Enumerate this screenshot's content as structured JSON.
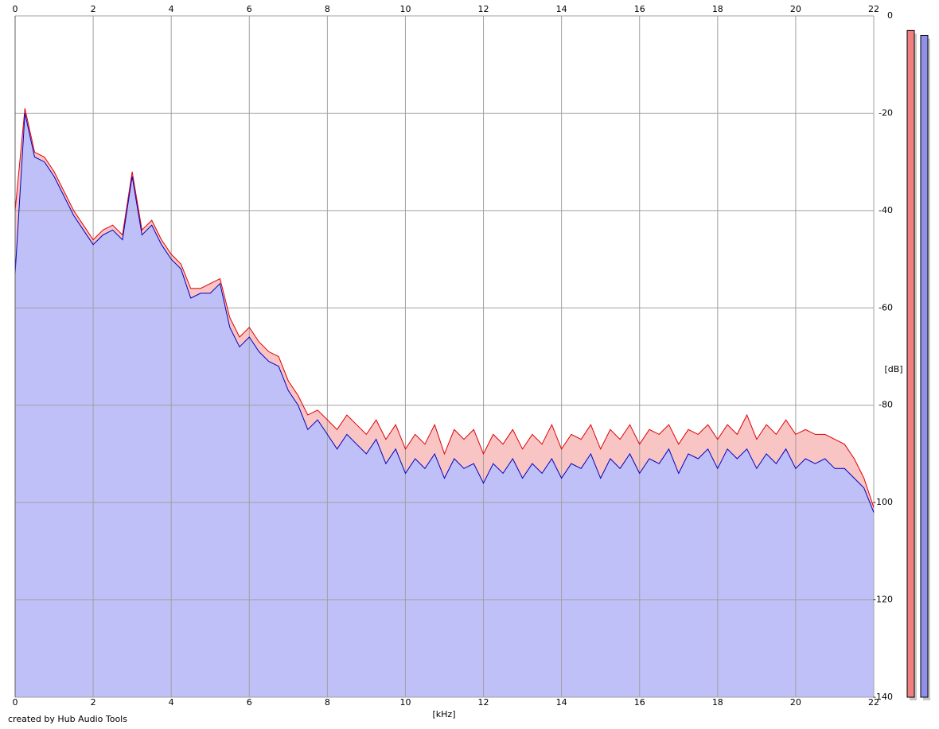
{
  "chart_data": {
    "type": "area",
    "xlabel": "[kHz]",
    "ylabel": "[dB]",
    "credit": "created by Hub Audio Tools",
    "xlim": [
      0,
      22
    ],
    "ylim": [
      -140,
      0
    ],
    "xticks": [
      0,
      2,
      4,
      6,
      8,
      10,
      12,
      14,
      16,
      18,
      20,
      22
    ],
    "yticks": [
      0,
      -20,
      -40,
      -60,
      -80,
      -100,
      -120,
      -140
    ],
    "grid": true,
    "x": [
      0,
      0.25,
      0.5,
      0.75,
      1,
      1.25,
      1.5,
      1.75,
      2,
      2.25,
      2.5,
      2.75,
      3,
      3.25,
      3.5,
      3.75,
      4,
      4.25,
      4.5,
      4.75,
      5,
      5.25,
      5.5,
      5.75,
      6,
      6.25,
      6.5,
      6.75,
      7,
      7.25,
      7.5,
      7.75,
      8,
      8.25,
      8.5,
      8.75,
      9,
      9.25,
      9.5,
      9.75,
      10,
      10.25,
      10.5,
      10.75,
      11,
      11.25,
      11.5,
      11.75,
      12,
      12.25,
      12.5,
      12.75,
      13,
      13.25,
      13.5,
      13.75,
      14,
      14.25,
      14.5,
      14.75,
      15,
      15.25,
      15.5,
      15.75,
      16,
      16.25,
      16.5,
      16.75,
      17,
      17.25,
      17.5,
      17.75,
      18,
      18.25,
      18.5,
      18.75,
      19,
      19.25,
      19.5,
      19.75,
      20,
      20.25,
      20.5,
      20.75,
      21,
      21.25,
      21.5,
      21.75,
      22
    ],
    "series": [
      {
        "color": "#e00000",
        "fill": "#f8c4c4",
        "values": [
          -40,
          -19,
          -28,
          -29,
          -32,
          -36,
          -40,
          -43,
          -46,
          -44,
          -43,
          -45,
          -32,
          -44,
          -42,
          -46,
          -49,
          -51,
          -56,
          -56,
          -55,
          -54,
          -62,
          -66,
          -64,
          -67,
          -69,
          -70,
          -75,
          -78,
          -82,
          -81,
          -83,
          -85,
          -82,
          -84,
          -86,
          -83,
          -87,
          -84,
          -89,
          -86,
          -88,
          -84,
          -90,
          -85,
          -87,
          -85,
          -90,
          -86,
          -88,
          -85,
          -89,
          -86,
          -88,
          -84,
          -89,
          -86,
          -87,
          -84,
          -89,
          -85,
          -87,
          -84,
          -88,
          -85,
          -86,
          -84,
          -88,
          -85,
          -86,
          -84,
          -87,
          -84,
          -86,
          -82,
          -87,
          -84,
          -86,
          -83,
          -86,
          -85,
          -86,
          -86,
          -87,
          -88,
          -91,
          -95,
          -101
        ]
      },
      {
        "color": "#0000c0",
        "fill": "#c0c0f8",
        "values": [
          -53,
          -20,
          -29,
          -30,
          -33,
          -37,
          -41,
          -44,
          -47,
          -45,
          -44,
          -46,
          -33,
          -45,
          -43,
          -47,
          -50,
          -52,
          -58,
          -57,
          -57,
          -55,
          -64,
          -68,
          -66,
          -69,
          -71,
          -72,
          -77,
          -80,
          -85,
          -83,
          -86,
          -89,
          -86,
          -88,
          -90,
          -87,
          -92,
          -89,
          -94,
          -91,
          -93,
          -90,
          -95,
          -91,
          -93,
          -92,
          -96,
          -92,
          -94,
          -91,
          -95,
          -92,
          -94,
          -91,
          -95,
          -92,
          -93,
          -90,
          -95,
          -91,
          -93,
          -90,
          -94,
          -91,
          -92,
          -89,
          -94,
          -90,
          -91,
          -89,
          -93,
          -89,
          -91,
          -89,
          -93,
          -90,
          -92,
          -89,
          -93,
          -91,
          -92,
          -91,
          -93,
          -93,
          -95,
          -97,
          -102
        ]
      }
    ],
    "level_meters": [
      {
        "color": "#f08080",
        "value": -3
      },
      {
        "color": "#9090e8",
        "value": -4
      }
    ]
  }
}
